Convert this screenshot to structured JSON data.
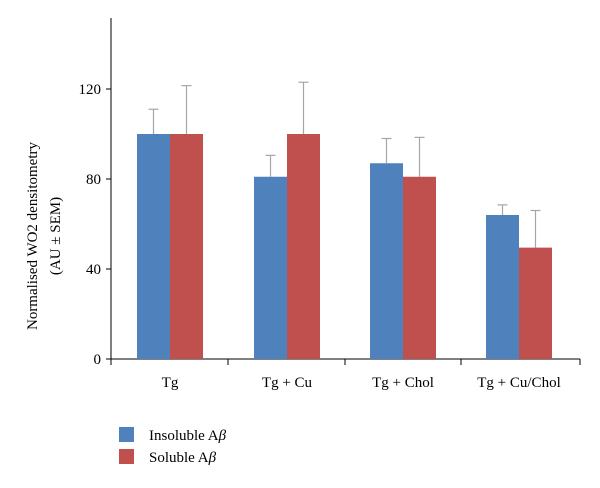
{
  "chart_data": {
    "type": "bar",
    "categories": [
      "Tg",
      "Tg + Cu",
      "Tg + Chol",
      "Tg + Cu/Chol"
    ],
    "series": [
      {
        "name": "Insoluble A",
        "name_symbol": "β",
        "color": "#4F81BD",
        "values": [
          100,
          81,
          87,
          64
        ],
        "errors": [
          11,
          9.5,
          11,
          4.5
        ]
      },
      {
        "name": "Soluble A",
        "name_symbol": "β",
        "color": "#C0504D",
        "values": [
          100,
          100,
          81,
          49.5
        ],
        "errors": [
          21.5,
          23,
          17.5,
          16.5
        ]
      }
    ],
    "ylabel": "Normalised WO2 densitometry",
    "ylabel_line2": "(AU ± SEM)",
    "ylim": [
      0,
      160
    ],
    "yticks": [
      0,
      40,
      80,
      120
    ],
    "grid": false,
    "legend_position": "bottom-left",
    "error_bar_color": "#A6A6A6"
  }
}
